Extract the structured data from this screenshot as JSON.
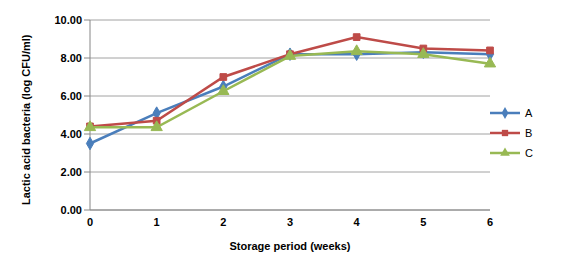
{
  "chart_data": {
    "type": "line",
    "x_label": "Storage period (weeks)",
    "y_label": "Lactic acid bacteria (log CFU/ml)",
    "categories": [
      "0",
      "1",
      "2",
      "3",
      "4",
      "5",
      "6"
    ],
    "series": [
      {
        "name": "A",
        "color": "#4a7ebb",
        "marker": "diamond",
        "values": [
          3.5,
          5.1,
          6.5,
          8.2,
          8.2,
          8.3,
          8.2
        ]
      },
      {
        "name": "B",
        "color": "#be4b48",
        "marker": "square",
        "values": [
          4.4,
          4.7,
          7.0,
          8.2,
          9.1,
          8.5,
          8.4
        ]
      },
      {
        "name": "C",
        "color": "#98b954",
        "marker": "triangle",
        "values": [
          4.35,
          4.35,
          6.25,
          8.1,
          8.35,
          8.2,
          7.7
        ]
      }
    ],
    "ylim": [
      0,
      10
    ],
    "yticks": [
      {
        "value": 0,
        "label": "0.00"
      },
      {
        "value": 2,
        "label": "2.00"
      },
      {
        "value": 4,
        "label": "4.00"
      },
      {
        "value": 6,
        "label": "6.00"
      },
      {
        "value": 8,
        "label": "8.00"
      },
      {
        "value": 10,
        "label": "10.00"
      }
    ],
    "grid": true,
    "legend": "right"
  }
}
